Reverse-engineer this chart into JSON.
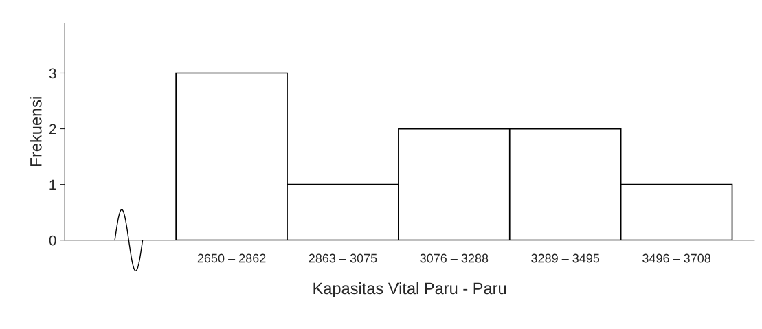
{
  "chart_data": {
    "type": "bar",
    "xlabel": "Kapasitas Vital Paru - Paru",
    "ylabel": "Frekuensi",
    "categories": [
      "2650 – 2862",
      "2863 – 3075",
      "3076 – 3288",
      "3289 – 3495",
      "3496 – 3708"
    ],
    "values": [
      3,
      1,
      2,
      2,
      1
    ],
    "color": "#ffffff",
    "ylim": [
      0,
      3.9
    ],
    "yticks": [
      0,
      1,
      2,
      3
    ],
    "grid": false,
    "legend": false
  }
}
